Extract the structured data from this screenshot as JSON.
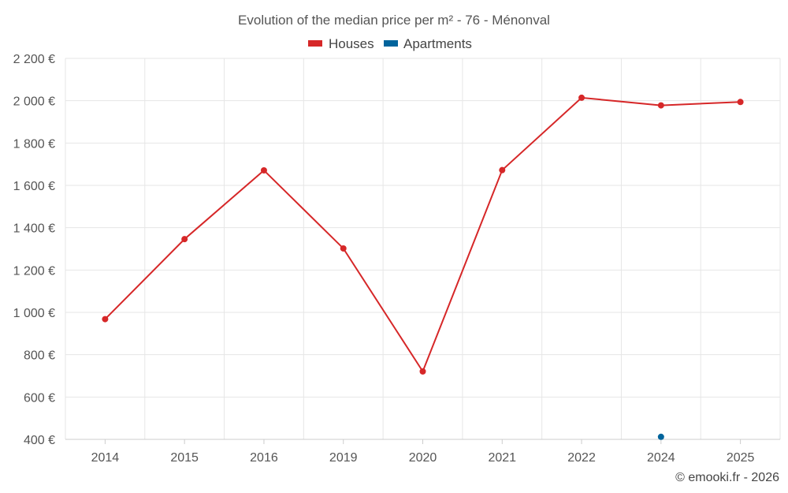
{
  "chart_data": {
    "type": "line",
    "title": "Evolution of the median price per m² - 76 - Ménonval",
    "categories": [
      "2014",
      "2015",
      "2016",
      "2019",
      "2020",
      "2021",
      "2022",
      "2024",
      "2025"
    ],
    "series": [
      {
        "name": "Houses",
        "color": "#d62728",
        "values": [
          968,
          1346,
          1671,
          1302,
          721,
          1672,
          2014,
          1978,
          1994
        ]
      },
      {
        "name": "Apartments",
        "color": "#00649c",
        "values": [
          null,
          null,
          null,
          null,
          null,
          null,
          null,
          412,
          null
        ]
      }
    ],
    "y_ticks": [
      400,
      600,
      800,
      1000,
      1200,
      1400,
      1600,
      1800,
      2000,
      2200
    ],
    "y_tick_labels": [
      "400 €",
      "600 €",
      "800 €",
      "1 000 €",
      "1 200 €",
      "1 400 €",
      "1 600 €",
      "1 800 €",
      "2 000 €",
      "2 200 €"
    ],
    "ylim": [
      400,
      2200
    ],
    "xlabel": "",
    "ylabel": "",
    "grid": true,
    "legend_position": "top-center"
  },
  "credit": "© emooki.fr - 2026"
}
